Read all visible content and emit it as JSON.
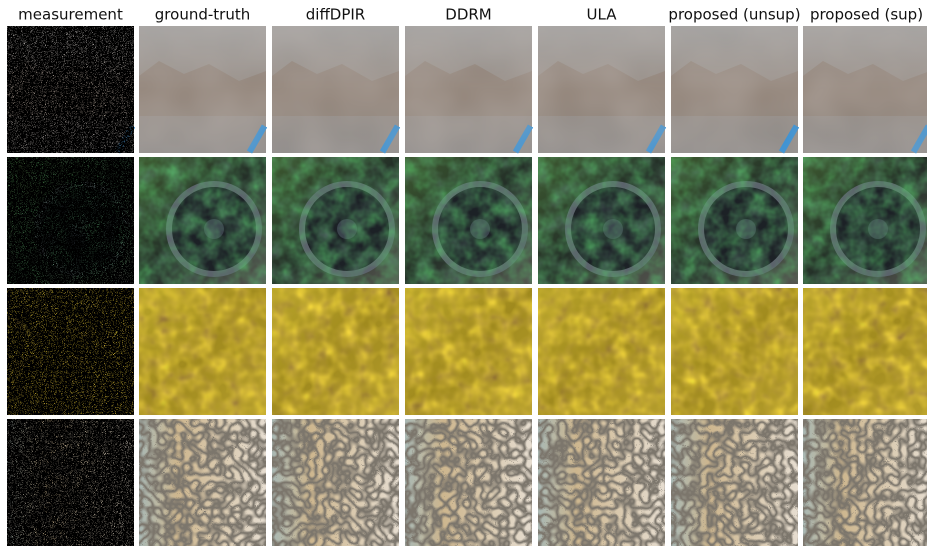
{
  "columns": [
    "measurement",
    "ground-truth",
    "diffDPIR",
    "DDRM",
    "ULA",
    "proposed (unsup)",
    "proposed (sup)"
  ]
}
